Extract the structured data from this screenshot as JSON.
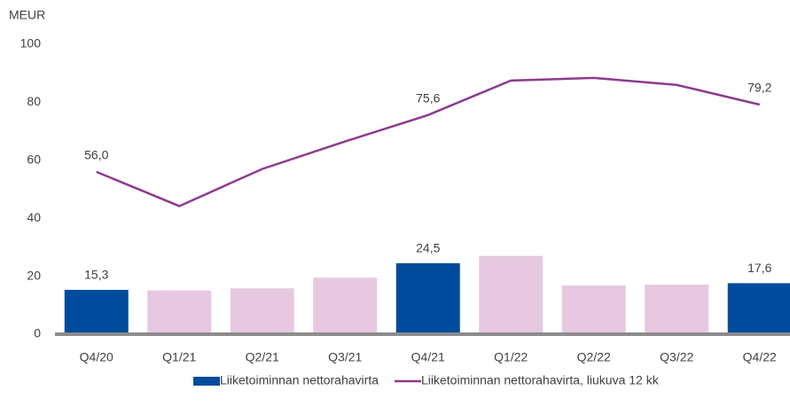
{
  "chart_data": {
    "type": "bar_line",
    "y_unit": "MEUR",
    "categories": [
      "Q4/20",
      "Q1/21",
      "Q2/21",
      "Q3/21",
      "Q4/21",
      "Q1/22",
      "Q2/22",
      "Q3/22",
      "Q4/22"
    ],
    "series": [
      {
        "name": "Liiketoiminnan nettorahavirta",
        "type": "bar",
        "color": "#004b9b",
        "colors": [
          "#004b9b",
          "#e6c8e0",
          "#e6c8e0",
          "#e6c8e0",
          "#004b9b",
          "#e6c8e0",
          "#e6c8e0",
          "#e6c8e0",
          "#004b9b"
        ],
        "values": [
          15.3,
          15.1,
          15.8,
          19.5,
          24.5,
          27.0,
          16.8,
          17.1,
          17.6
        ],
        "value_labels": [
          "15,3",
          null,
          null,
          null,
          "24,5",
          null,
          null,
          null,
          "17,6"
        ]
      },
      {
        "name": "Liiketoiminnan nettorahavirta, liukuva 12 kk",
        "type": "line",
        "color": "#8e3a8e",
        "values": [
          56.0,
          44.2,
          57.0,
          66.5,
          75.6,
          87.5,
          88.4,
          86.0,
          79.2
        ],
        "value_labels": [
          "56,0",
          null,
          null,
          null,
          "75,6",
          null,
          null,
          null,
          "79,2"
        ]
      }
    ],
    "ylim": [
      0,
      100
    ],
    "yticks": [
      0,
      20,
      40,
      60,
      80,
      100
    ],
    "grid": false,
    "legend": "bottom"
  }
}
